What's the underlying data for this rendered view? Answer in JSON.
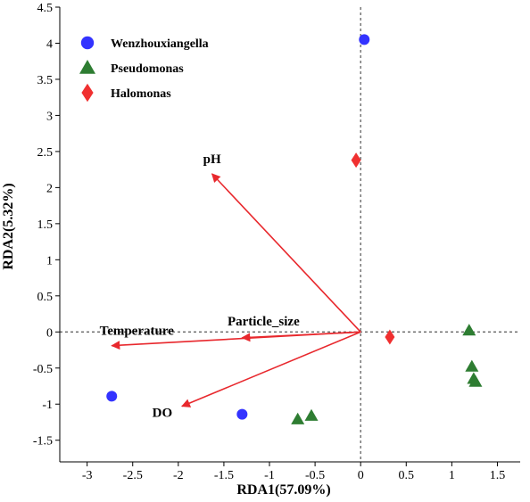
{
  "chart_data": {
    "type": "scatter",
    "xlabel": "RDA1(57.09%)",
    "ylabel": "RDA2(5.32%)",
    "xlim": [
      -3.3,
      1.75
    ],
    "ylim": [
      -1.8,
      4.5
    ],
    "xticks": [
      "-3",
      "-2.5",
      "-2",
      "-1.5",
      "-1",
      "-0.5",
      "0",
      "0.5",
      "1",
      "1.5"
    ],
    "yticks": [
      "-1.5",
      "-1",
      "-0.5",
      "0",
      "0.5",
      "1",
      "1.5",
      "2",
      "2.5",
      "3",
      "3.5",
      "4",
      "4.5"
    ],
    "reference_lines": {
      "x": 0,
      "y": 0,
      "style": "dotted"
    },
    "legend_position": "top-left",
    "series": [
      {
        "name": "Wenzhouxiangella",
        "marker": "circle",
        "color": "#3333ff",
        "points": [
          [
            0.04,
            4.05
          ],
          [
            -2.73,
            -0.89
          ],
          [
            -1.3,
            -1.14
          ]
        ]
      },
      {
        "name": "Pseudomonas",
        "marker": "triangle",
        "color": "#2e7d32",
        "points": [
          [
            1.19,
            0.02
          ],
          [
            1.22,
            -0.48
          ],
          [
            1.24,
            -0.65
          ],
          [
            1.26,
            -0.69
          ],
          [
            -0.54,
            -1.16
          ],
          [
            -0.69,
            -1.21
          ]
        ]
      },
      {
        "name": "Halomonas",
        "marker": "diamond",
        "color": "#f03030",
        "points": [
          [
            -0.05,
            2.38
          ],
          [
            0.32,
            -0.07
          ]
        ]
      }
    ],
    "vectors": [
      {
        "label": "pH",
        "x": -1.63,
        "y": 2.19,
        "color": "#e8282d"
      },
      {
        "label": "Temperature",
        "x": -2.73,
        "y": -0.19,
        "color": "#e8282d"
      },
      {
        "label": "Particle_size",
        "x": -1.3,
        "y": -0.08,
        "color": "#e8282d"
      },
      {
        "label": "DO",
        "x": -1.96,
        "y": -1.03,
        "color": "#e8282d"
      }
    ]
  }
}
